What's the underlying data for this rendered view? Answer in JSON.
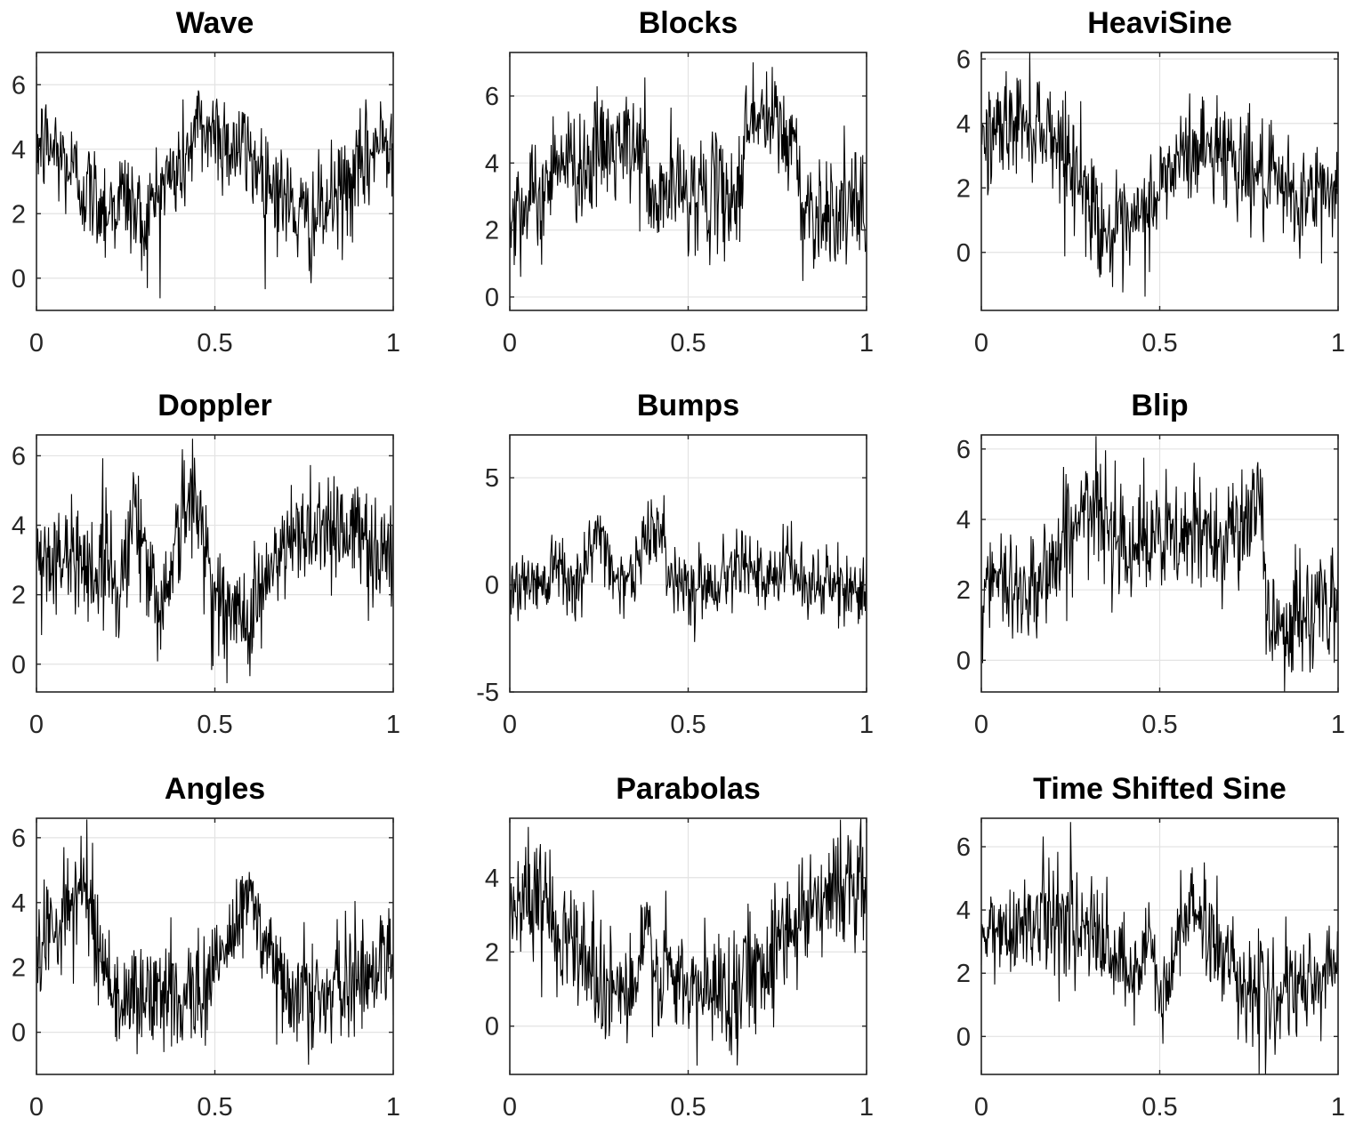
{
  "figure": {
    "grid": true,
    "line_color": "#000000",
    "grid_color": "#e3e3e3",
    "axes_color": "#262626",
    "background": "#ffffff"
  },
  "chart_data": [
    {
      "type": "line",
      "title": "Wave",
      "xlabel": "",
      "ylabel": "",
      "xlim": [
        0,
        1
      ],
      "ylim": [
        -1,
        7
      ],
      "xticks": [
        0,
        0.5,
        1
      ],
      "xticklabels": [
        "0",
        "0.5",
        "1"
      ],
      "yticks": [
        0,
        2,
        4,
        6
      ],
      "yticklabels": [
        "0",
        "2",
        "4",
        "6"
      ],
      "series": [
        {
          "x": [
            0,
            0.05,
            0.1,
            0.15,
            0.2,
            0.25,
            0.3,
            0.35,
            0.4,
            0.45,
            0.5,
            0.55,
            0.6,
            0.65,
            0.7,
            0.75,
            0.8,
            0.85,
            0.9,
            0.95,
            1
          ],
          "y": [
            4.2,
            4.0,
            3.3,
            2.6,
            2.2,
            2.6,
            1.6,
            2.9,
            3.3,
            4.6,
            4.6,
            4.1,
            3.8,
            3.1,
            2.4,
            1.7,
            2.0,
            2.6,
            3.1,
            4.1,
            4.3
          ]
        }
      ]
    },
    {
      "type": "line",
      "title": "Blocks",
      "xlabel": "",
      "ylabel": "",
      "xlim": [
        0,
        1
      ],
      "ylim": [
        -0.4,
        7.3
      ],
      "xticks": [
        0,
        0.5,
        1
      ],
      "xticklabels": [
        "0",
        "0.5",
        "1"
      ],
      "yticks": [
        0,
        2,
        4,
        6
      ],
      "yticklabels": [
        "0",
        "2",
        "4",
        "6"
      ],
      "series": [
        {
          "x": [
            0,
            0.05,
            0.1,
            0.13,
            0.15,
            0.23,
            0.25,
            0.38,
            0.4,
            0.44,
            0.55,
            0.65,
            0.66,
            0.7,
            0.76,
            0.78,
            0.8,
            0.81,
            0.85,
            0.9,
            1
          ],
          "y": [
            2.8,
            2.7,
            3.0,
            4.6,
            4.0,
            4.0,
            4.4,
            4.4,
            2.4,
            3.3,
            3.1,
            3.0,
            5.6,
            5.3,
            5.1,
            4.4,
            5.0,
            2.9,
            2.6,
            2.6,
            2.5
          ]
        }
      ]
    },
    {
      "type": "line",
      "title": "HeaviSine",
      "xlabel": "",
      "ylabel": "",
      "xlim": [
        0,
        1
      ],
      "ylim": [
        -1.8,
        6.2
      ],
      "xticks": [
        0,
        0.5,
        1
      ],
      "xticklabels": [
        "0",
        "0.5",
        "1"
      ],
      "yticks": [
        0,
        2,
        4,
        6
      ],
      "yticklabels": [
        "0",
        "2",
        "4",
        "6"
      ],
      "series": [
        {
          "x": [
            0,
            0.05,
            0.1,
            0.15,
            0.2,
            0.25,
            0.3,
            0.35,
            0.4,
            0.45,
            0.5,
            0.55,
            0.6,
            0.65,
            0.7,
            0.75,
            0.8,
            0.85,
            0.9,
            0.95,
            1
          ],
          "y": [
            3.4,
            3.8,
            4.1,
            4.1,
            3.7,
            2.9,
            1.7,
            0.6,
            0.4,
            1.0,
            2.0,
            2.8,
            3.2,
            3.3,
            3.1,
            2.6,
            2.1,
            1.8,
            1.6,
            1.8,
            2.1
          ]
        }
      ]
    },
    {
      "type": "line",
      "title": "Doppler",
      "xlabel": "",
      "ylabel": "",
      "xlim": [
        0,
        1
      ],
      "ylim": [
        -0.8,
        6.6
      ],
      "xticks": [
        0,
        0.5,
        1
      ],
      "xticklabels": [
        "0",
        "0.5",
        "1"
      ],
      "yticks": [
        0,
        2,
        4,
        6
      ],
      "yticklabels": [
        "0",
        "2",
        "4",
        "6"
      ],
      "series": [
        {
          "x": [
            0,
            0.04,
            0.08,
            0.12,
            0.16,
            0.2,
            0.23,
            0.27,
            0.3,
            0.34,
            0.38,
            0.42,
            0.46,
            0.5,
            0.55,
            0.6,
            0.65,
            0.7,
            0.75,
            0.8,
            0.85,
            0.9,
            0.95,
            1
          ],
          "y": [
            3.0,
            3.2,
            2.7,
            3.4,
            2.5,
            3.3,
            1.8,
            4.7,
            3.3,
            1.5,
            3.0,
            4.8,
            4.2,
            2.0,
            1.2,
            1.6,
            2.5,
            3.3,
            3.9,
            4.1,
            4.0,
            3.7,
            3.4,
            3.1
          ]
        }
      ]
    },
    {
      "type": "line",
      "title": "Bumps",
      "xlabel": "",
      "ylabel": "",
      "xlim": [
        0,
        1
      ],
      "ylim": [
        -5,
        7
      ],
      "xticks": [
        0,
        0.5,
        1
      ],
      "xticklabels": [
        "0",
        "0.5",
        "1"
      ],
      "yticks": [
        -5,
        0,
        5
      ],
      "yticklabels": [
        "-5",
        "0",
        "5"
      ],
      "series": [
        {
          "x": [
            0,
            0.05,
            0.1,
            0.13,
            0.16,
            0.2,
            0.25,
            0.3,
            0.35,
            0.4,
            0.45,
            0.5,
            0.55,
            0.6,
            0.65,
            0.7,
            0.75,
            0.78,
            0.81,
            0.85,
            0.9,
            0.95,
            1
          ],
          "y": [
            -0.2,
            0.1,
            0.3,
            1.4,
            0.5,
            0.2,
            2.6,
            0.3,
            0.4,
            3.2,
            0.5,
            0.1,
            0.0,
            0.2,
            1.8,
            0.1,
            0.0,
            1.5,
            0.1,
            0.0,
            -0.1,
            -0.2,
            -0.1
          ]
        }
      ]
    },
    {
      "type": "line",
      "title": "Blip",
      "xlabel": "",
      "ylabel": "",
      "xlim": [
        0,
        1
      ],
      "ylim": [
        -0.9,
        6.4
      ],
      "xticks": [
        0,
        0.5,
        1
      ],
      "xticklabels": [
        "0",
        "0.5",
        "1"
      ],
      "yticks": [
        0,
        2,
        4,
        6
      ],
      "yticklabels": [
        "0",
        "2",
        "4",
        "6"
      ],
      "series": [
        {
          "x": [
            0,
            0.05,
            0.1,
            0.15,
            0.2,
            0.25,
            0.3,
            0.35,
            0.4,
            0.45,
            0.5,
            0.55,
            0.6,
            0.65,
            0.7,
            0.75,
            0.79,
            0.8,
            0.85,
            0.9,
            0.95,
            1
          ],
          "y": [
            1.9,
            2.1,
            2.0,
            2.3,
            2.7,
            3.8,
            4.2,
            4.0,
            3.6,
            3.3,
            3.4,
            3.4,
            3.5,
            3.6,
            3.8,
            3.9,
            4.2,
            1.2,
            1.0,
            1.2,
            1.5,
            1.6
          ]
        }
      ]
    },
    {
      "type": "line",
      "title": "Angles",
      "xlabel": "",
      "ylabel": "",
      "xlim": [
        0,
        1
      ],
      "ylim": [
        -1.3,
        6.6
      ],
      "xticks": [
        0,
        0.5,
        1
      ],
      "xticklabels": [
        "0",
        "0.5",
        "1"
      ],
      "yticks": [
        0,
        2,
        4,
        6
      ],
      "yticklabels": [
        "0",
        "2",
        "4",
        "6"
      ],
      "series": [
        {
          "x": [
            0,
            0.05,
            0.1,
            0.14,
            0.18,
            0.22,
            0.3,
            0.38,
            0.45,
            0.5,
            0.55,
            0.6,
            0.64,
            0.7,
            0.8,
            0.88,
            0.95,
            1
          ],
          "y": [
            2.6,
            3.3,
            4.0,
            4.5,
            2.6,
            1.0,
            1.1,
            1.1,
            1.3,
            1.9,
            3.0,
            4.7,
            2.2,
            1.6,
            1.0,
            1.5,
            2.1,
            2.5
          ]
        }
      ]
    },
    {
      "type": "line",
      "title": "Parabolas",
      "xlabel": "",
      "ylabel": "",
      "xlim": [
        0,
        1
      ],
      "ylim": [
        -1.3,
        5.6
      ],
      "xticks": [
        0,
        0.5,
        1
      ],
      "xticklabels": [
        "0",
        "0.5",
        "1"
      ],
      "yticks": [
        0,
        2,
        4
      ],
      "yticklabels": [
        "0",
        "2",
        "4"
      ],
      "series": [
        {
          "x": [
            0,
            0.05,
            0.1,
            0.15,
            0.2,
            0.25,
            0.3,
            0.35,
            0.38,
            0.42,
            0.5,
            0.55,
            0.6,
            0.65,
            0.7,
            0.75,
            0.8,
            0.85,
            0.9,
            0.95,
            1
          ],
          "y": [
            3.3,
            3.4,
            3.2,
            2.7,
            2.0,
            1.4,
            1.0,
            0.8,
            2.5,
            1.4,
            0.9,
            0.9,
            1.0,
            1.3,
            1.7,
            2.3,
            2.9,
            3.4,
            3.7,
            3.8,
            3.6
          ]
        }
      ]
    },
    {
      "type": "line",
      "title": "Time Shifted Sine",
      "xlabel": "",
      "ylabel": "",
      "xlim": [
        0,
        1
      ],
      "ylim": [
        -1.2,
        6.9
      ],
      "xticks": [
        0,
        0.5,
        1
      ],
      "xticklabels": [
        "0",
        "0.5",
        "1"
      ],
      "yticks": [
        0,
        2,
        4,
        6
      ],
      "yticklabels": [
        "0",
        "2",
        "4",
        "6"
      ],
      "series": [
        {
          "x": [
            0,
            0.05,
            0.1,
            0.15,
            0.2,
            0.25,
            0.3,
            0.35,
            0.4,
            0.44,
            0.47,
            0.5,
            0.53,
            0.56,
            0.6,
            0.65,
            0.7,
            0.75,
            0.8,
            0.85,
            0.9,
            0.95,
            1
          ],
          "y": [
            3.0,
            3.3,
            3.6,
            3.8,
            3.9,
            3.7,
            3.3,
            2.7,
            2.0,
            1.5,
            3.4,
            1.3,
            1.4,
            4.0,
            3.9,
            3.1,
            2.3,
            1.6,
            1.2,
            1.2,
            1.4,
            1.9,
            2.4
          ]
        }
      ]
    }
  ]
}
